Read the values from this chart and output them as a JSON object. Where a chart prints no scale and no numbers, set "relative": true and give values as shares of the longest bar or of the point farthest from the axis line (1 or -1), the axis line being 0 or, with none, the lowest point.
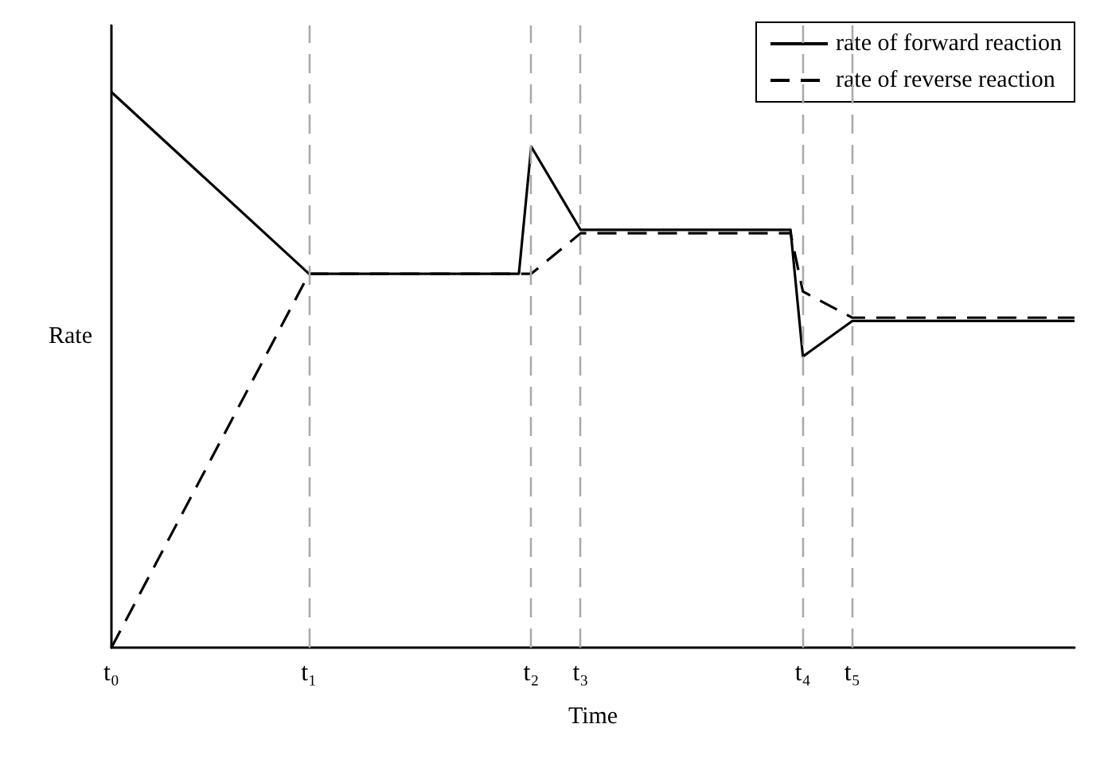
{
  "chart_data": {
    "type": "line",
    "relative": true,
    "xlabel": "Time",
    "ylabel": "Rate",
    "categories": [
      "t₀",
      null,
      null,
      null,
      null,
      null,
      null,
      null,
      null,
      null,
      null,
      null,
      null,
      null,
      null,
      null,
      "t₁",
      null,
      null,
      null,
      null,
      null,
      null,
      null,
      null,
      null,
      null,
      null,
      null,
      null,
      null,
      null,
      null,
      null,
      "t₂",
      null,
      null,
      null,
      "t₃",
      null,
      null,
      null,
      null,
      null,
      null,
      null,
      null,
      null,
      null,
      null,
      null,
      null,
      null,
      null,
      null,
      null,
      "t₄",
      null,
      null,
      null,
      "t₅",
      null,
      null,
      null,
      null,
      null,
      null,
      null,
      null,
      null,
      null,
      null,
      null,
      null,
      null,
      null,
      null,
      null,
      null
    ],
    "series": [
      {
        "name": "rate of forward reaction",
        "color": "#000000",
        "line_style": "solid",
        "values": [
          1,
          null,
          null,
          null,
          null,
          null,
          null,
          null,
          null,
          null,
          null,
          null,
          null,
          null,
          null,
          null,
          0.673,
          null,
          null,
          null,
          null,
          null,
          null,
          null,
          null,
          null,
          null,
          null,
          null,
          null,
          null,
          null,
          null,
          0.673,
          0.902,
          null,
          null,
          null,
          0.752,
          null,
          null,
          null,
          null,
          null,
          null,
          null,
          null,
          null,
          null,
          null,
          null,
          null,
          null,
          null,
          null,
          0.752,
          0.524,
          null,
          null,
          null,
          0.588,
          null,
          null,
          null,
          null,
          null,
          null,
          null,
          null,
          null,
          null,
          null,
          null,
          null,
          null,
          null,
          null,
          null,
          0.588
        ]
      },
      {
        "name": "rate of reverse reaction",
        "color": "#000000",
        "line_style": "dashed",
        "values": [
          0,
          null,
          null,
          null,
          null,
          null,
          null,
          null,
          null,
          null,
          null,
          null,
          null,
          null,
          null,
          null,
          0.673,
          null,
          null,
          null,
          null,
          null,
          null,
          null,
          null,
          null,
          null,
          null,
          null,
          null,
          null,
          null,
          null,
          null,
          0.673,
          null,
          null,
          null,
          0.746,
          null,
          null,
          null,
          null,
          null,
          null,
          null,
          null,
          null,
          null,
          null,
          null,
          null,
          null,
          null,
          null,
          0.746,
          0.641,
          null,
          null,
          null,
          0.594,
          null,
          null,
          null,
          null,
          null,
          null,
          null,
          null,
          null,
          null,
          null,
          null,
          null,
          null,
          null,
          null,
          null,
          0.594
        ]
      }
    ],
    "ref_lines": [
      {
        "axis": "x",
        "value": "t₁",
        "label": null,
        "color": "#aaaaaa",
        "line_style": "dashed"
      },
      {
        "axis": "x",
        "value": "t₂",
        "label": null,
        "color": "#aaaaaa",
        "line_style": "dashed"
      },
      {
        "axis": "x",
        "value": "t₃",
        "label": null,
        "color": "#aaaaaa",
        "line_style": "dashed"
      },
      {
        "axis": "x",
        "value": "t₄",
        "label": null,
        "color": "#aaaaaa",
        "line_style": "dashed"
      },
      {
        "axis": "x",
        "value": "t₅",
        "label": null,
        "color": "#aaaaaa",
        "line_style": "dashed"
      }
    ],
    "grid": false,
    "legend": "top right",
    "marker": "none"
  }
}
